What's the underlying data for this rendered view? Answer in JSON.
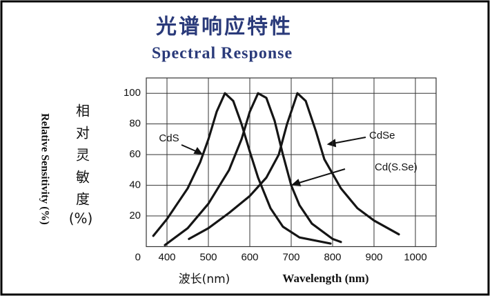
{
  "chart_data": {
    "type": "line",
    "title": "光谱响应特性",
    "subtitle": "Spectral Response",
    "y_label_cn": "相对灵敏度",
    "y_label_unit": "(%)",
    "y_label": "Relative Sensitivity (%)",
    "x_label_cn": "波长(nm)",
    "x_label": "Wavelength (nm)",
    "xlim": [
      350,
      1050
    ],
    "xticks": [
      400,
      500,
      600,
      700,
      800,
      900,
      1000
    ],
    "ylim": [
      0,
      110
    ],
    "yticks": [
      0,
      20,
      40,
      60,
      80,
      100
    ],
    "grid": true,
    "series": [
      {
        "name": "CdS",
        "color": "#151515",
        "x": [
          367,
          400,
          450,
          480,
          500,
          520,
          540,
          560,
          580,
          600,
          620,
          650,
          680,
          720,
          795
        ],
        "values": [
          7,
          18,
          38,
          55,
          70,
          88,
          100,
          95,
          80,
          62,
          45,
          25,
          13,
          6,
          2
        ]
      },
      {
        "name": "Cd(S.Se)",
        "color": "#151515",
        "x": [
          395,
          450,
          500,
          550,
          580,
          600,
          620,
          640,
          660,
          680,
          700,
          720,
          750,
          800,
          820
        ],
        "values": [
          1,
          12,
          28,
          50,
          70,
          88,
          100,
          97,
          82,
          60,
          40,
          27,
          15,
          5,
          3
        ]
      },
      {
        "name": "CdSe",
        "color": "#151515",
        "x": [
          453,
          500,
          550,
          600,
          640,
          670,
          690,
          715,
          735,
          760,
          780,
          820,
          860,
          900,
          960
        ],
        "values": [
          5,
          12,
          22,
          33,
          45,
          60,
          80,
          100,
          95,
          75,
          57,
          38,
          25,
          17,
          8
        ]
      }
    ]
  }
}
